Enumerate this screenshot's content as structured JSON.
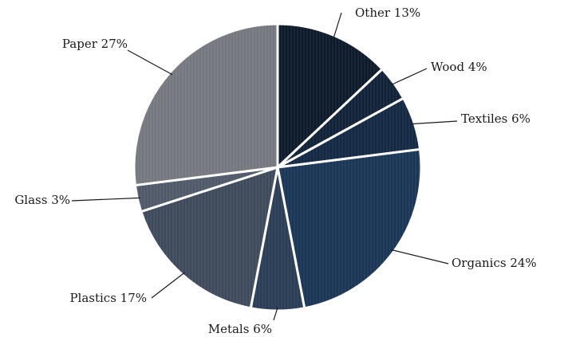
{
  "chart_data": {
    "type": "pie",
    "start_angle_deg": 0,
    "direction": "clockwise",
    "slices": [
      {
        "category": "Other",
        "value": 13,
        "label": "Other 13%",
        "color": "#0d1a2b"
      },
      {
        "category": "Wood",
        "value": 4,
        "label": "Wood 4%",
        "color": "#112238"
      },
      {
        "category": "Textiles",
        "value": 6,
        "label": "Textiles 6%",
        "color": "#132943"
      },
      {
        "category": "Organics",
        "value": 24,
        "label": "Organics 24%",
        "color": "#1b3557"
      },
      {
        "category": "Metals",
        "value": 6,
        "label": "Metals 6%",
        "color": "#2a3d55"
      },
      {
        "category": "Plastics",
        "value": 17,
        "label": "Plastics 17%",
        "color": "#3e4a5c"
      },
      {
        "category": "Glass",
        "value": 3,
        "label": "Glass 3%",
        "color": "#4f5968"
      },
      {
        "category": "Paper",
        "value": 27,
        "label": "Paper 27%",
        "color": "#75787f"
      }
    ]
  }
}
